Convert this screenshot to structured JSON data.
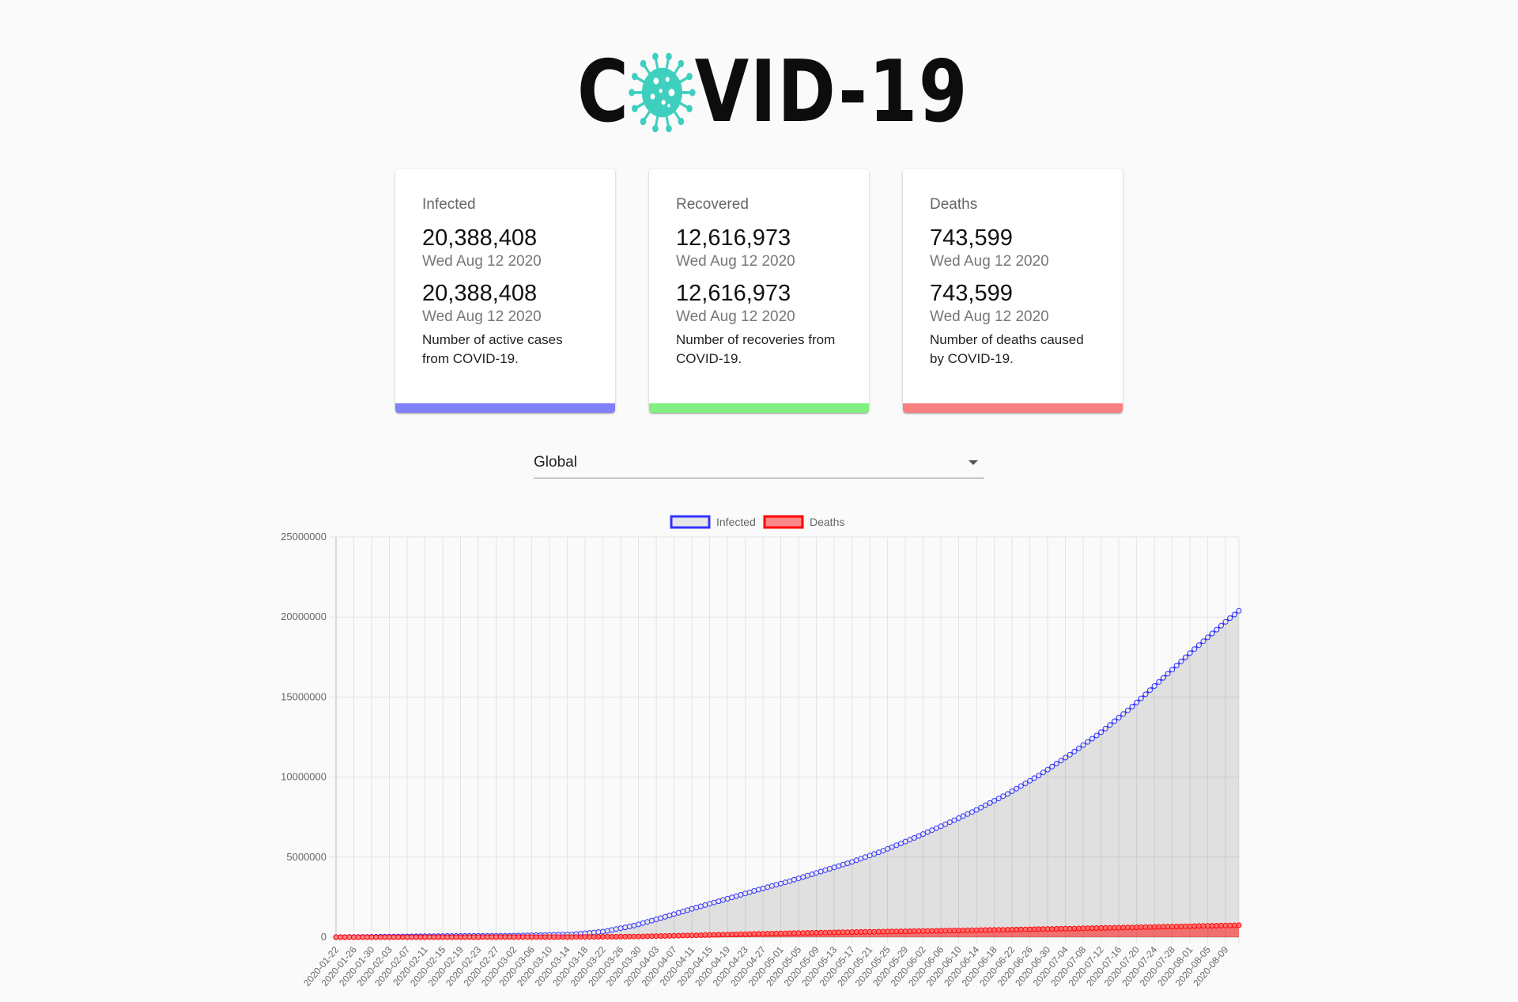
{
  "header": {
    "logo_left": "C",
    "logo_right": "VID-19",
    "logo_icon": "virus-icon",
    "logo_icon_color": "#3fcfbf"
  },
  "cards": [
    {
      "title": "Infected",
      "value": "20,388,408",
      "date": "Wed Aug 12 2020",
      "value2": "20,388,408",
      "date2": "Wed Aug 12 2020",
      "description": "Number of active cases from COVID-19.",
      "color": "#8080f8"
    },
    {
      "title": "Recovered",
      "value": "12,616,973",
      "date": "Wed Aug 12 2020",
      "value2": "12,616,973",
      "date2": "Wed Aug 12 2020",
      "description": "Number of recoveries from COVID-19.",
      "color": "#80f080"
    },
    {
      "title": "Deaths",
      "value": "743,599",
      "date": "Wed Aug 12 2020",
      "value2": "743,599",
      "date2": "Wed Aug 12 2020",
      "description": "Number of deaths caused by COVID-19.",
      "color": "#f88080"
    }
  ],
  "country_select": {
    "value": "Global",
    "icon": "arrow-drop-down-icon"
  },
  "chart_data": {
    "type": "line",
    "title": "",
    "xlabel": "",
    "ylabel": "",
    "ylim": [
      0,
      25000000
    ],
    "y_ticks": [
      0,
      5000000,
      10000000,
      15000000,
      20000000,
      25000000
    ],
    "y_tick_labels": [
      "0",
      "5000000",
      "10000000",
      "15000000",
      "20000000",
      "25000000"
    ],
    "x_start": "2020-01-22",
    "x_end": "2020-08-12",
    "x_tick_labels": [
      "2020-01-22",
      "2020-01-26",
      "2020-01-30",
      "2020-02-03",
      "2020-02-07",
      "2020-02-11",
      "2020-02-15",
      "2020-02-19",
      "2020-02-23",
      "2020-02-27",
      "2020-03-02",
      "2020-03-06",
      "2020-03-10",
      "2020-03-14",
      "2020-03-18",
      "2020-03-22",
      "2020-03-26",
      "2020-03-30",
      "2020-04-03",
      "2020-04-07",
      "2020-04-11",
      "2020-04-15",
      "2020-04-19",
      "2020-04-23",
      "2020-04-27",
      "2020-05-01",
      "2020-05-05",
      "2020-05-09",
      "2020-05-13",
      "2020-05-17",
      "2020-05-21",
      "2020-05-25",
      "2020-05-29",
      "2020-06-02",
      "2020-06-06",
      "2020-06-10",
      "2020-06-14",
      "2020-06-18",
      "2020-06-22",
      "2020-06-26",
      "2020-06-30",
      "2020-07-04",
      "2020-07-08",
      "2020-07-12",
      "2020-07-16",
      "2020-07-20",
      "2020-07-24",
      "2020-07-28",
      "2020-08-01",
      "2020-08-05",
      "2020-08-09"
    ],
    "legend_position": "top",
    "grid": true,
    "series": [
      {
        "name": "Infected",
        "color": "#3333ff",
        "fill": "rgba(0,0,0,0.1)",
        "knots_x": [
          "2020-01-22",
          "2020-02-15",
          "2020-03-01",
          "2020-03-15",
          "2020-03-22",
          "2020-03-29",
          "2020-04-05",
          "2020-04-12",
          "2020-04-19",
          "2020-04-26",
          "2020-05-03",
          "2020-05-10",
          "2020-05-17",
          "2020-05-24",
          "2020-05-31",
          "2020-06-07",
          "2020-06-14",
          "2020-06-21",
          "2020-06-28",
          "2020-07-05",
          "2020-07-12",
          "2020-07-19",
          "2020-07-26",
          "2020-08-02",
          "2020-08-09",
          "2020-08-12"
        ],
        "knots_y": [
          555,
          71000,
          88000,
          170000,
          340000,
          720000,
          1270000,
          1850000,
          2400000,
          2970000,
          3500000,
          4100000,
          4700000,
          5400000,
          6200000,
          7050000,
          7950000,
          8950000,
          10100000,
          11400000,
          12800000,
          14400000,
          16200000,
          18000000,
          19700000,
          20388408
        ]
      },
      {
        "name": "Deaths",
        "color": "#ff0000",
        "fill": "rgba(255,0,0,0.5)",
        "knots_x": [
          "2020-01-22",
          "2020-03-01",
          "2020-03-15",
          "2020-03-29",
          "2020-04-12",
          "2020-04-26",
          "2020-05-10",
          "2020-05-24",
          "2020-06-07",
          "2020-06-21",
          "2020-07-05",
          "2020-07-19",
          "2020-08-02",
          "2020-08-12"
        ],
        "knots_y": [
          17,
          3000,
          6500,
          35000,
          115000,
          207000,
          283000,
          347000,
          404000,
          466000,
          535000,
          610000,
          690000,
          743599
        ]
      }
    ]
  }
}
